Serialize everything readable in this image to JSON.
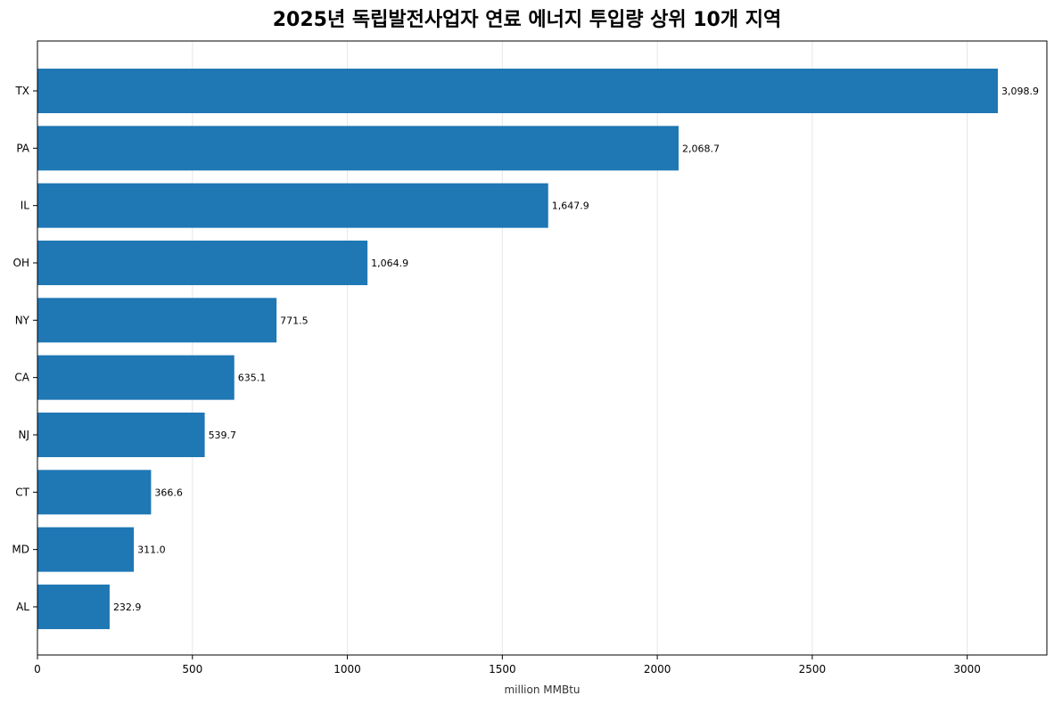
{
  "chart_data": {
    "type": "bar",
    "orientation": "horizontal",
    "title": "2025년 독립발전사업자 연료 에너지 투입량 상위 10개 지역",
    "xlabel": "million MMBtu",
    "ylabel": "",
    "categories": [
      "TX",
      "PA",
      "IL",
      "OH",
      "NY",
      "CA",
      "NJ",
      "CT",
      "MD",
      "AL"
    ],
    "values": [
      3098.9,
      2068.7,
      1647.9,
      1064.9,
      771.5,
      635.1,
      539.7,
      366.6,
      311.0,
      232.9
    ],
    "value_labels": [
      "3,098.9",
      "2,068.7",
      "1,647.9",
      "1,064.9",
      "771.5",
      "635.1",
      "539.7",
      "366.6",
      "311.0",
      "232.9"
    ],
    "xlim": [
      0,
      3257
    ],
    "xticks": [
      0,
      500,
      1000,
      1500,
      2000,
      2500,
      3000
    ],
    "grid": "vertical",
    "legend": "none",
    "bar_color": "#1f77b4"
  }
}
